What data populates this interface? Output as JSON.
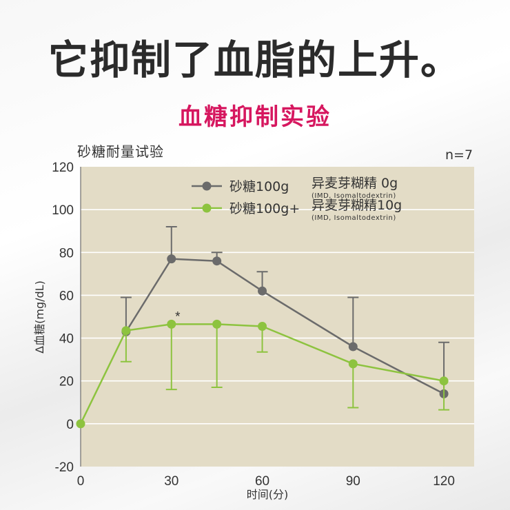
{
  "headline": "它抑制了血脂的上升。",
  "subheadline": "血糖抑制实验",
  "colors": {
    "headline": "#2b2b2b",
    "subheadline": "#d6175f",
    "plot_background": "#e3dcc6",
    "series_control": "#6b6b6b",
    "series_imd": "#8dc33f"
  },
  "chart_data": {
    "type": "line",
    "title": "",
    "subtitle": "砂糖耐量试验",
    "annotation_n": "n=7",
    "xlabel": "时间(分)",
    "ylabel": "Δ血糖(mg/dL)",
    "xlim": [
      0,
      130
    ],
    "ylim": [
      -20,
      120
    ],
    "xticks": [
      0,
      30,
      60,
      90,
      120
    ],
    "yticks": [
      -20,
      0,
      20,
      40,
      60,
      80,
      100,
      120
    ],
    "grid": true,
    "legend_position": "top-center",
    "series": [
      {
        "name": "砂糖100g",
        "name_suffix": "异麦芽糊精 0g",
        "note": "(IMD, Isomaltodextrin)",
        "color": "#6b6b6b",
        "x": [
          15,
          30,
          45,
          60,
          90,
          120
        ],
        "y": [
          43,
          77,
          76,
          62,
          36,
          14
        ],
        "error_upper": [
          59,
          92,
          80,
          71,
          59,
          38
        ],
        "error_lower": [
          null,
          null,
          null,
          null,
          null,
          null
        ]
      },
      {
        "name": "砂糖100g+",
        "name_suffix": "异麦芽糊精10g",
        "note": "(IMD, Isomaltodextrin)",
        "color": "#8dc33f",
        "x": [
          0,
          15,
          30,
          45,
          60,
          90,
          120
        ],
        "y": [
          0,
          43.5,
          46.5,
          46.5,
          45.5,
          28,
          20
        ],
        "error_upper": [
          null,
          null,
          null,
          null,
          null,
          null,
          null
        ],
        "error_lower": [
          null,
          29,
          16,
          17,
          33.5,
          7.5,
          6.5
        ]
      }
    ],
    "significance_markers": [
      {
        "x": 30,
        "y": 46.5,
        "label": "*"
      }
    ]
  }
}
